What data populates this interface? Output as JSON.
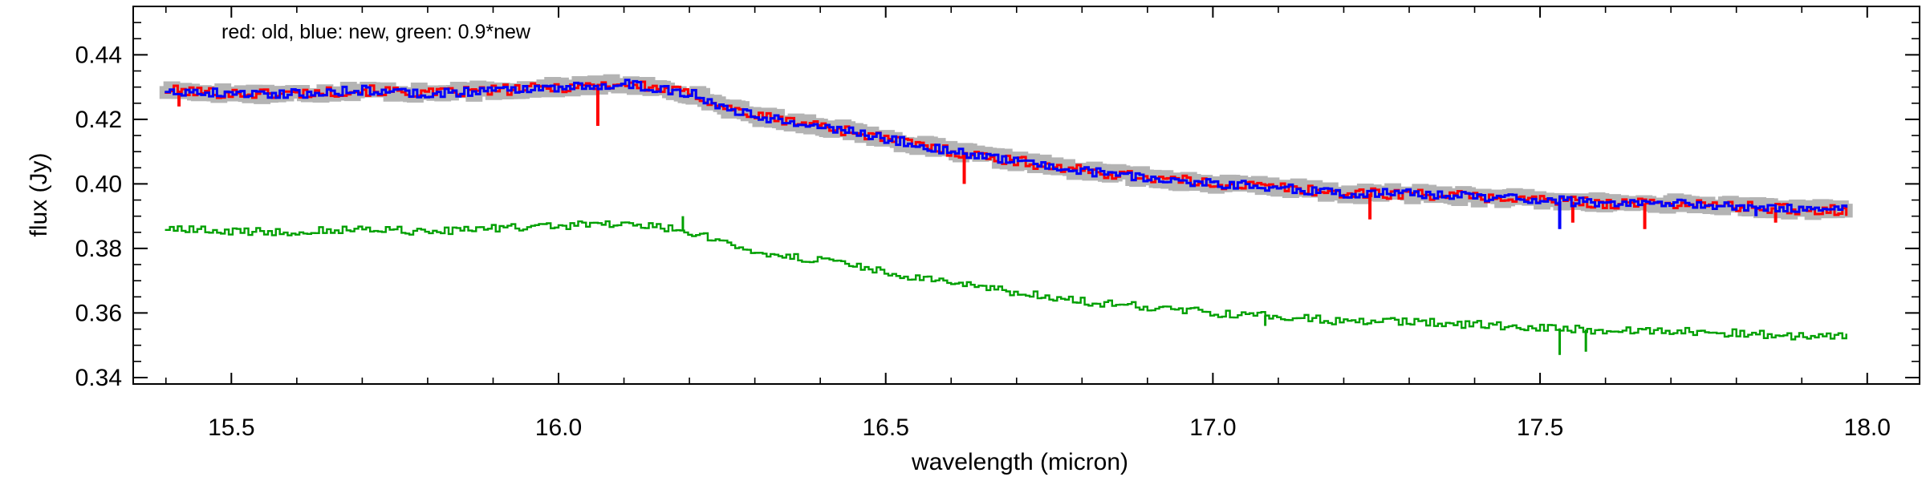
{
  "chart_data": {
    "type": "line",
    "annotation": "red: old, blue: new, green: 0.9*new",
    "xlabel": "wavelength (micron)",
    "ylabel": "flux (Jy)",
    "xlim": [
      15.35,
      18.08
    ],
    "ylim": [
      0.338,
      0.455
    ],
    "xticks": [
      15.5,
      16.0,
      16.5,
      17.0,
      17.5,
      18.0
    ],
    "xtick_labels": [
      "15.5",
      "16.0",
      "16.5",
      "17.0",
      "17.5",
      "18.0"
    ],
    "yticks": [
      0.34,
      0.36,
      0.38,
      0.4,
      0.42,
      0.44
    ],
    "ytick_labels": [
      "0.34",
      "0.36",
      "0.38",
      "0.40",
      "0.42",
      "0.44"
    ],
    "grid": false,
    "x": [
      15.4,
      15.5,
      15.6,
      15.7,
      15.8,
      15.9,
      16.0,
      16.1,
      16.2,
      16.25,
      16.3,
      16.4,
      16.5,
      16.6,
      16.7,
      16.8,
      16.9,
      17.0,
      17.1,
      17.2,
      17.3,
      17.4,
      17.5,
      17.6,
      17.7,
      17.8,
      17.9,
      17.97
    ],
    "series": [
      {
        "name": "old",
        "color": "#ff0000",
        "values": [
          0.429,
          0.428,
          0.428,
          0.429,
          0.428,
          0.429,
          0.43,
          0.431,
          0.428,
          0.424,
          0.421,
          0.418,
          0.414,
          0.41,
          0.407,
          0.404,
          0.402,
          0.4,
          0.399,
          0.397,
          0.397,
          0.396,
          0.395,
          0.394,
          0.394,
          0.393,
          0.392,
          0.392
        ],
        "spikes": [
          {
            "x": 15.42,
            "y": 0.424
          },
          {
            "x": 16.06,
            "y": 0.418
          },
          {
            "x": 16.62,
            "y": 0.4
          },
          {
            "x": 17.24,
            "y": 0.389
          },
          {
            "x": 17.55,
            "y": 0.388
          },
          {
            "x": 17.66,
            "y": 0.386
          },
          {
            "x": 17.86,
            "y": 0.388
          }
        ]
      },
      {
        "name": "new",
        "color": "#0000ff",
        "values": [
          0.429,
          0.428,
          0.428,
          0.429,
          0.428,
          0.429,
          0.43,
          0.431,
          0.428,
          0.424,
          0.421,
          0.418,
          0.414,
          0.41,
          0.407,
          0.404,
          0.402,
          0.4,
          0.399,
          0.397,
          0.397,
          0.396,
          0.395,
          0.394,
          0.394,
          0.393,
          0.392,
          0.392
        ],
        "spikes": [
          {
            "x": 17.53,
            "y": 0.386
          },
          {
            "x": 17.83,
            "y": 0.39
          }
        ]
      },
      {
        "name": "0.9*new",
        "color": "#00a000",
        "values": [
          0.3861,
          0.3852,
          0.3852,
          0.3861,
          0.3852,
          0.3861,
          0.387,
          0.3879,
          0.3852,
          0.3816,
          0.3789,
          0.3762,
          0.3726,
          0.369,
          0.3663,
          0.3636,
          0.3618,
          0.36,
          0.3591,
          0.3573,
          0.3573,
          0.3564,
          0.3555,
          0.3546,
          0.3546,
          0.3537,
          0.3528,
          0.3528
        ],
        "spikes": [
          {
            "x": 17.53,
            "y": 0.347
          },
          {
            "x": 17.57,
            "y": 0.348
          },
          {
            "x": 17.08,
            "y": 0.356
          },
          {
            "x": 16.19,
            "y": 0.39
          }
        ]
      }
    ],
    "envelope": {
      "color": "#b4b4b4",
      "based_on": "new"
    }
  }
}
